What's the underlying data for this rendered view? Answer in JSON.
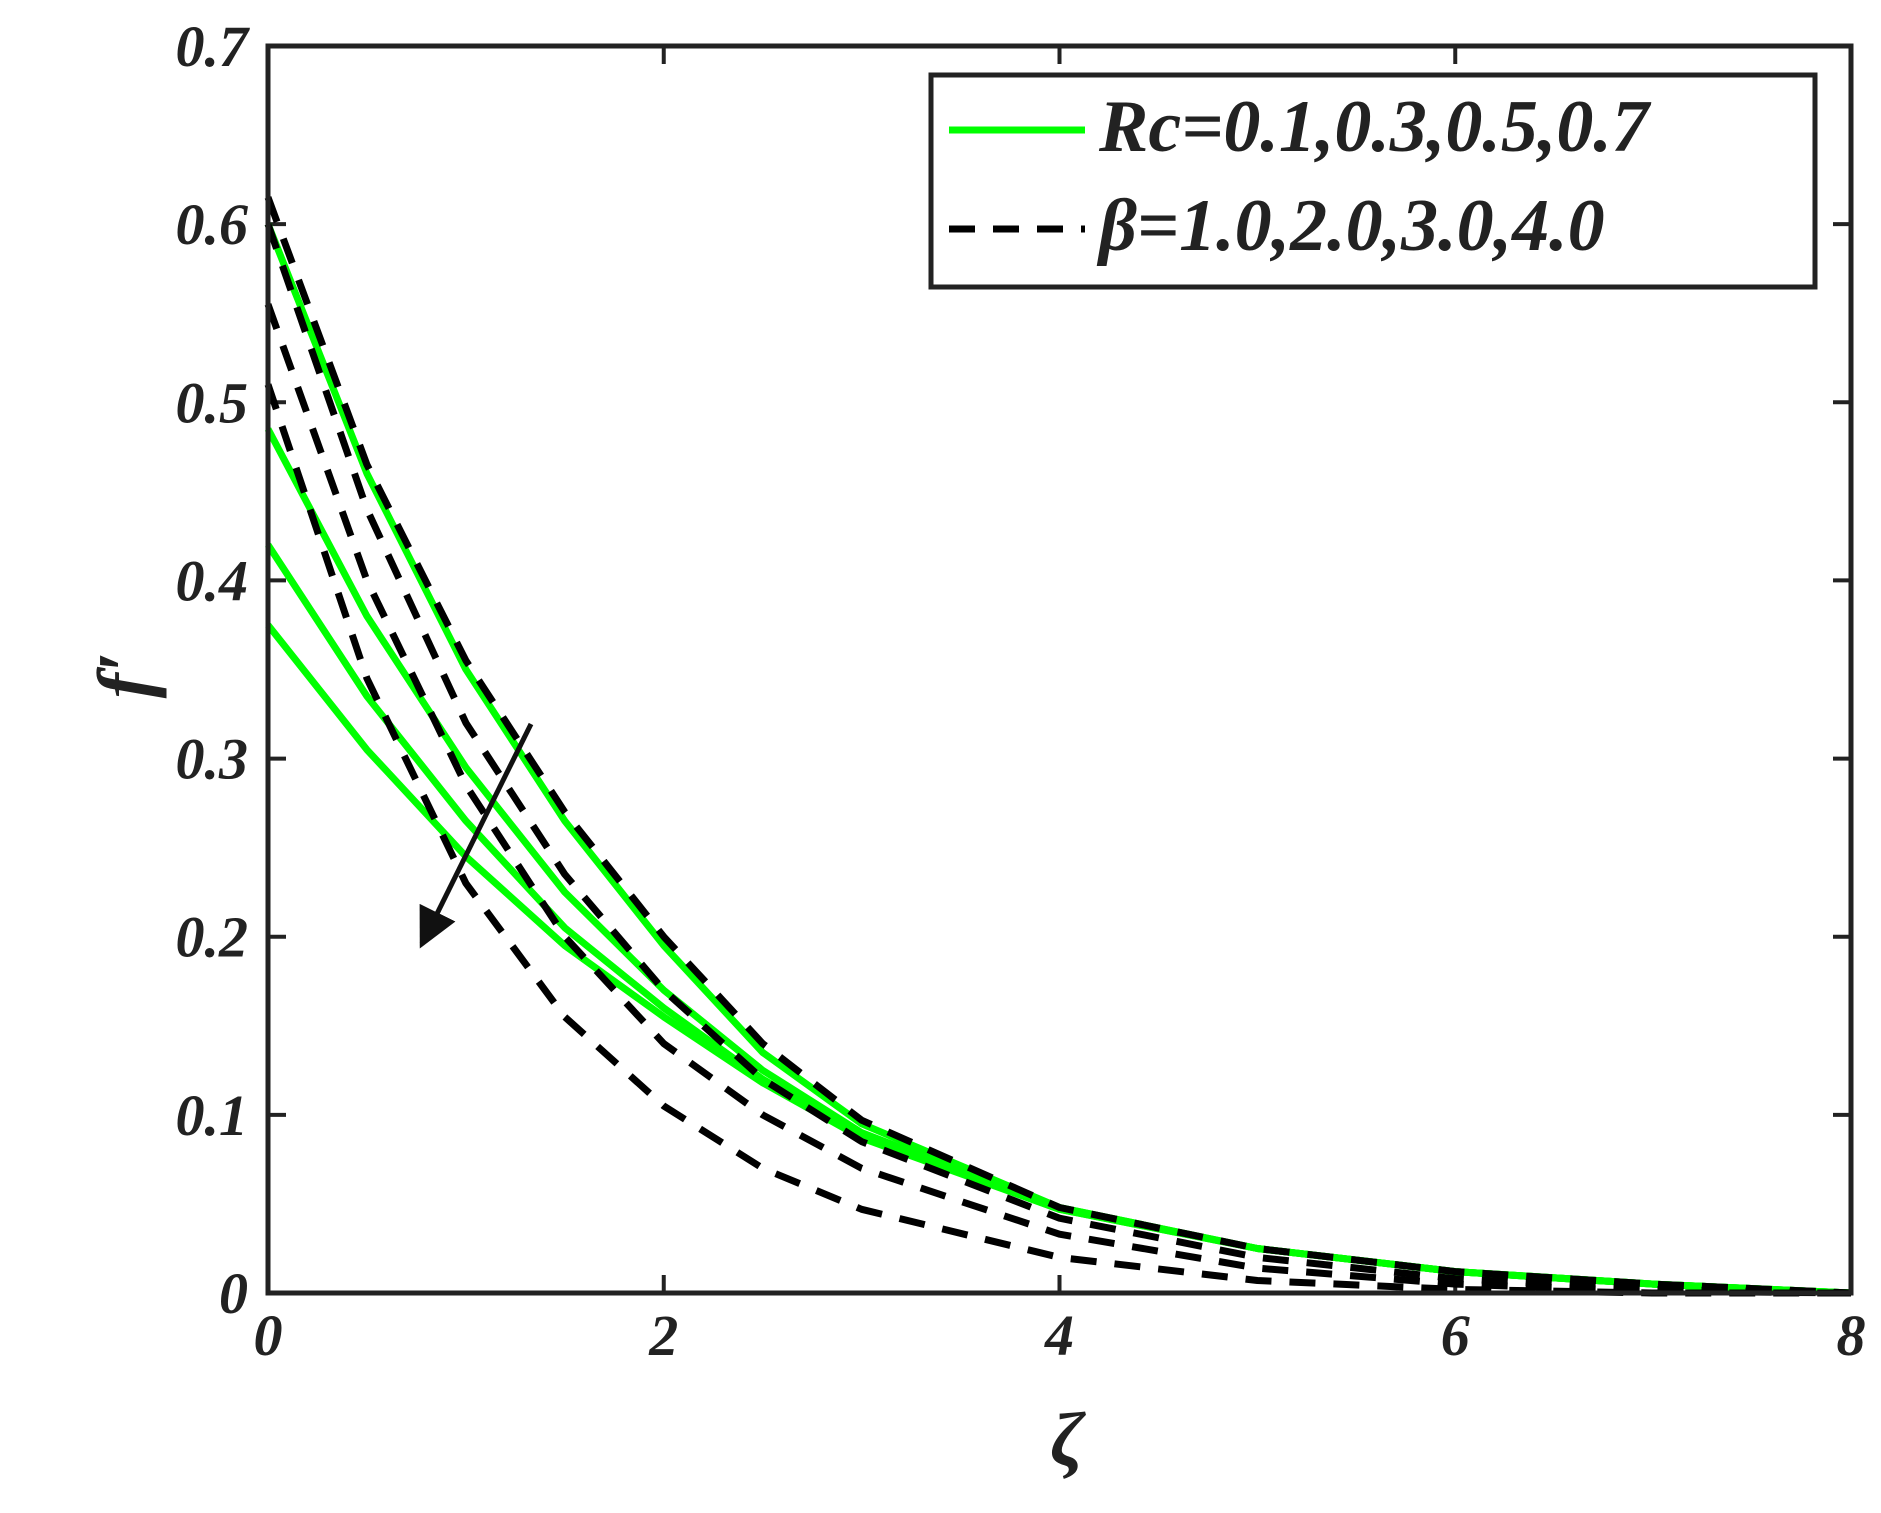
{
  "chart_data": {
    "type": "line",
    "xlabel": "ζ",
    "ylabel": "f′",
    "x": [
      0,
      0.5,
      1,
      1.5,
      2,
      2.5,
      3,
      4,
      5,
      6,
      7,
      8
    ],
    "xlim": [
      0,
      8
    ],
    "xticks": [
      0,
      2,
      4,
      6,
      8
    ],
    "ylim": [
      0,
      0.7
    ],
    "yticks": [
      0,
      0.1,
      0.2,
      0.3,
      0.4,
      0.5,
      0.6,
      0.7
    ],
    "legend": "upper right",
    "series": [
      {
        "name": "Rc=0.1,0.3,0.5,0.7",
        "color": "#00ff00",
        "style": "solid",
        "curves": [
          [
            0.6,
            0.46,
            0.35,
            0.265,
            0.195,
            0.135,
            0.095,
            0.048,
            0.025,
            0.012,
            0.005,
            0
          ],
          [
            0.485,
            0.38,
            0.295,
            0.225,
            0.17,
            0.125,
            0.09,
            0.048,
            0.025,
            0.012,
            0.005,
            0
          ],
          [
            0.42,
            0.335,
            0.265,
            0.205,
            0.16,
            0.12,
            0.088,
            0.047,
            0.025,
            0.012,
            0.005,
            0
          ],
          [
            0.375,
            0.305,
            0.245,
            0.195,
            0.155,
            0.118,
            0.087,
            0.047,
            0.025,
            0.012,
            0.005,
            0
          ]
        ]
      },
      {
        "name": "β=1.0,2.0,3.0,4.0",
        "color": "#000000",
        "style": "dashed",
        "curves": [
          [
            0.615,
            0.465,
            0.355,
            0.27,
            0.2,
            0.14,
            0.097,
            0.048,
            0.025,
            0.012,
            0.005,
            0
          ],
          [
            0.6,
            0.44,
            0.32,
            0.235,
            0.17,
            0.12,
            0.085,
            0.042,
            0.02,
            0.008,
            0.002,
            0
          ],
          [
            0.555,
            0.4,
            0.285,
            0.2,
            0.14,
            0.1,
            0.07,
            0.033,
            0.014,
            0.005,
            0.001,
            0
          ],
          [
            0.51,
            0.345,
            0.23,
            0.155,
            0.105,
            0.07,
            0.047,
            0.02,
            0.007,
            0.002,
            0,
            0
          ]
        ]
      }
    ]
  }
}
